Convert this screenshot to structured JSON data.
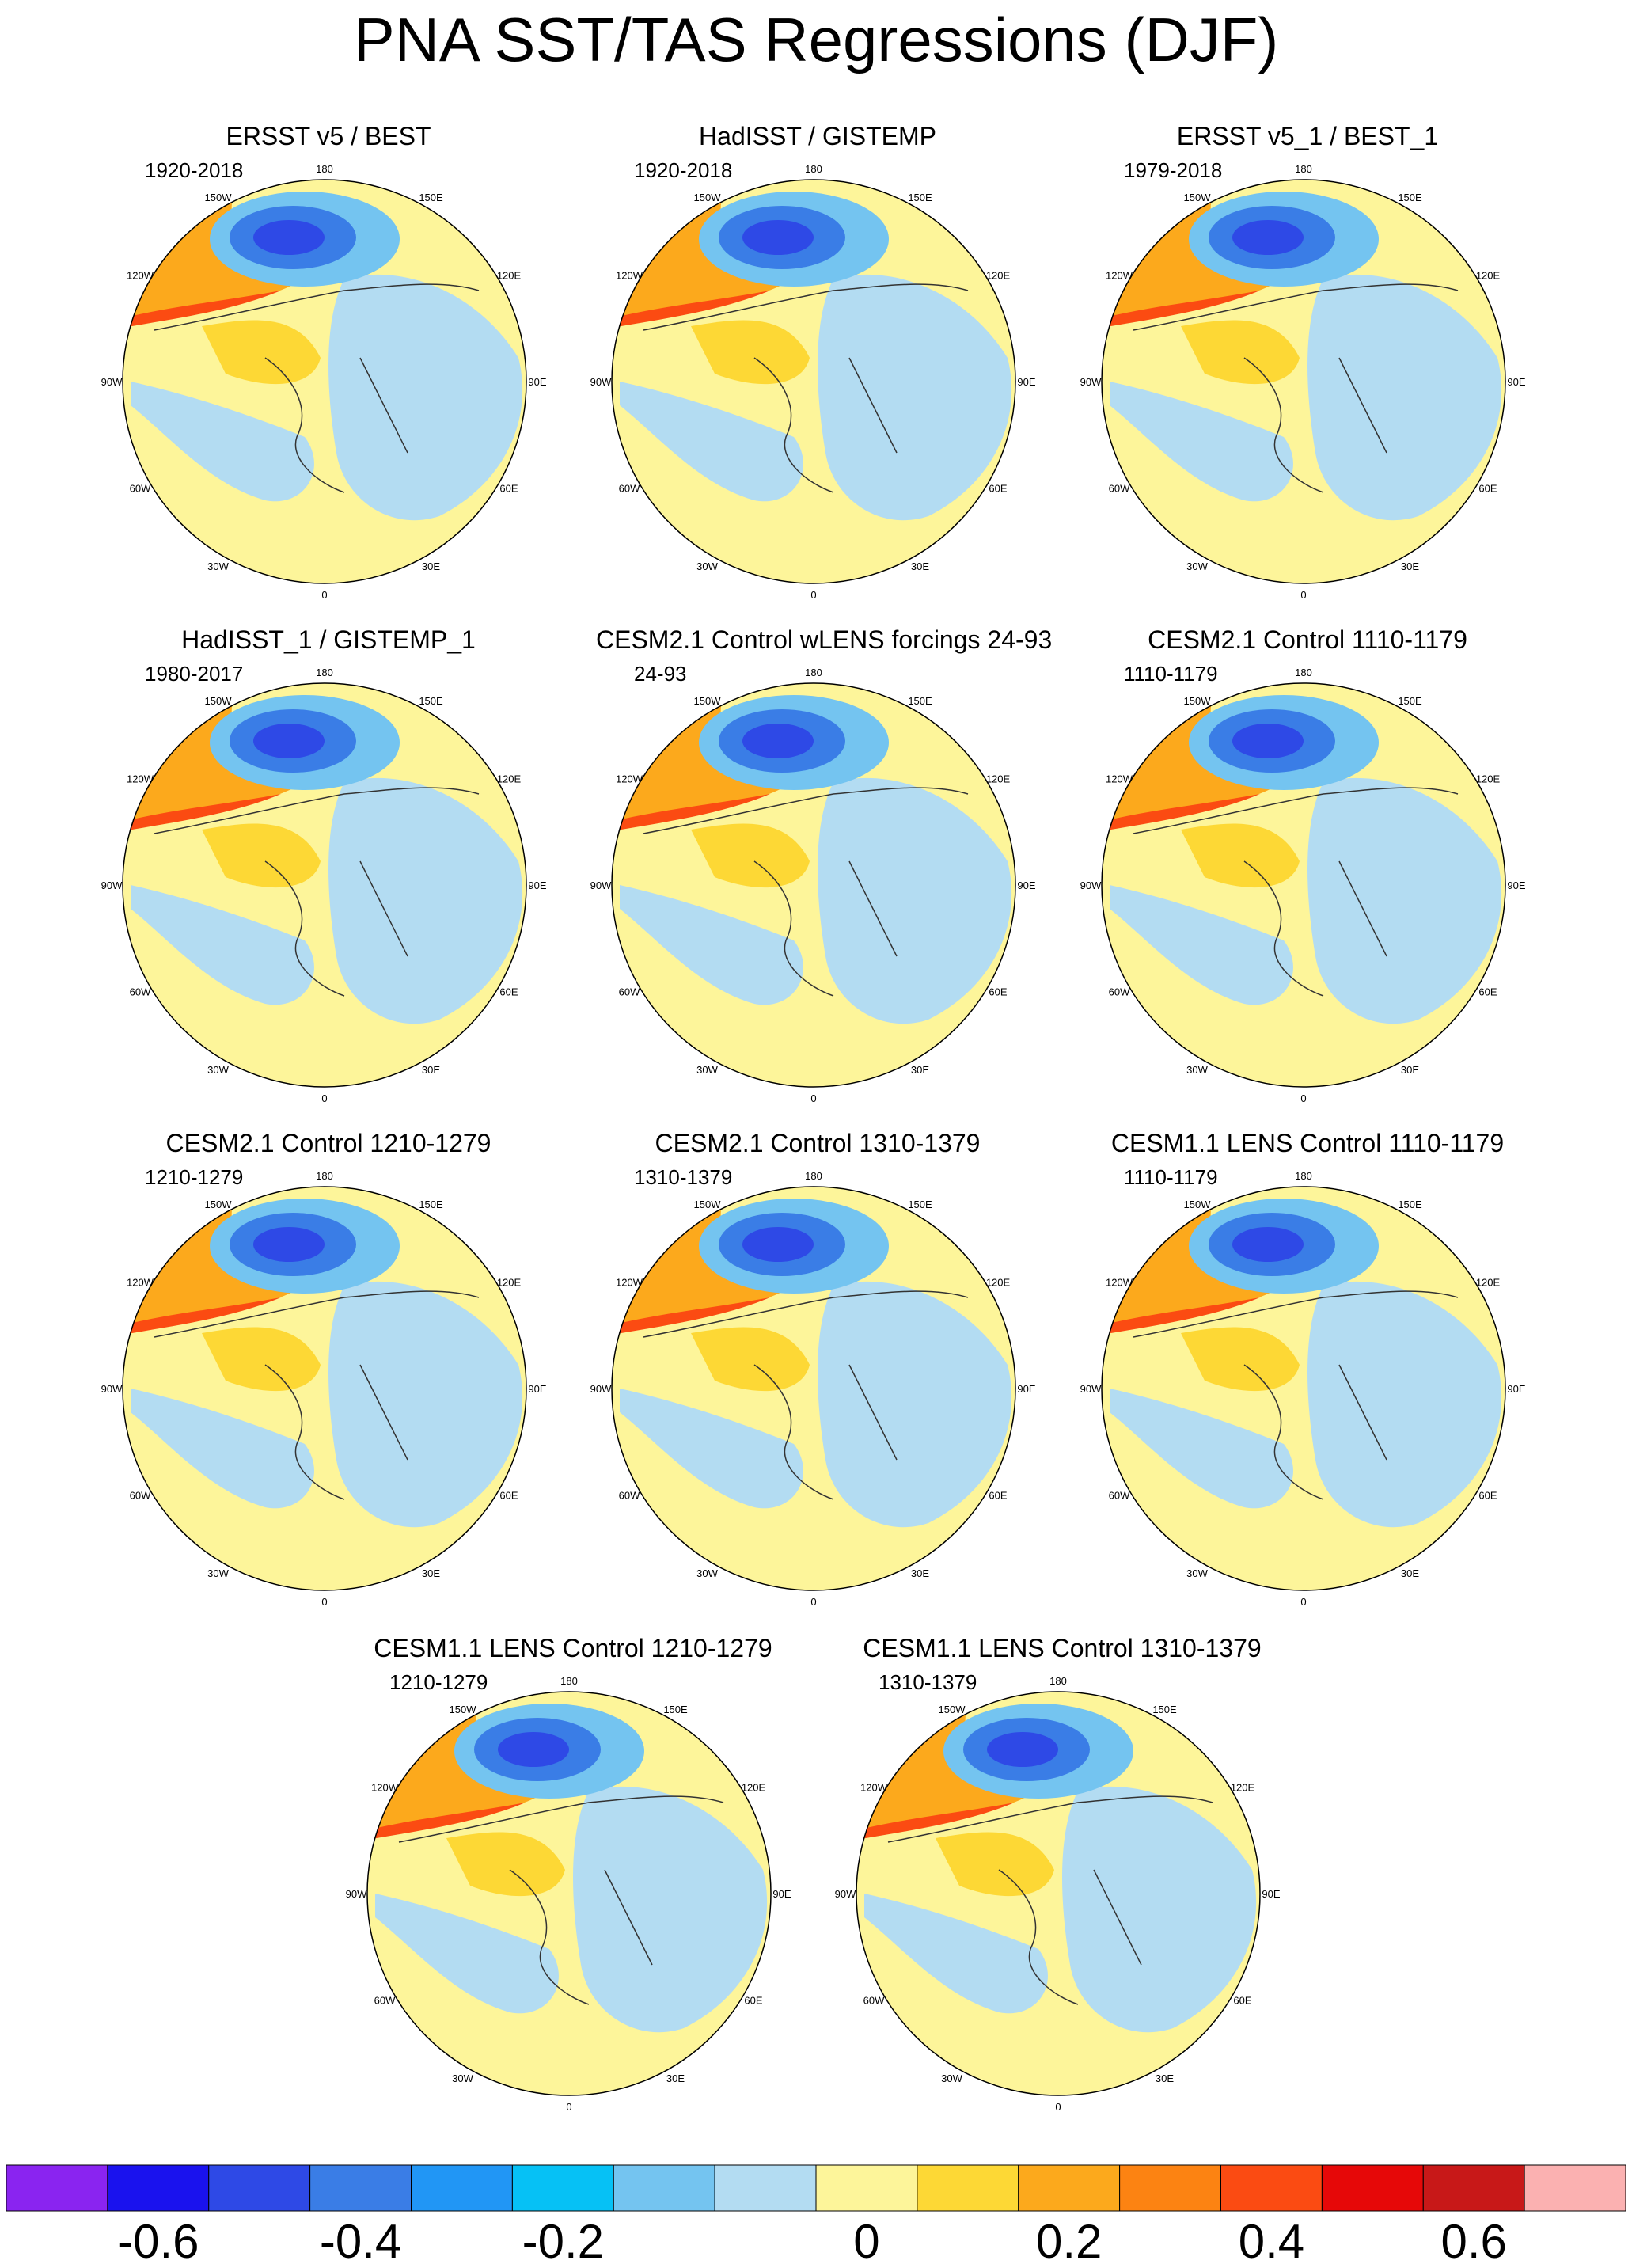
{
  "title": "PNA SST/TAS Regressions (DJF)",
  "colors": {
    "palette": [
      "#8a24f0",
      "#1a12ee",
      "#2e49e6",
      "#3a7de6",
      "#2196f5",
      "#06c1f5",
      "#74c4f0",
      "#b3dcf2",
      "#fdf59a",
      "#fdd835",
      "#fca91c",
      "#fc8312",
      "#fb4b12",
      "#e60808",
      "#c81818",
      "#fbb1b1"
    ],
    "ocean_low_accent": "#2e49e6",
    "coast": "#333333"
  },
  "lon_labels": {
    "lon_180": "180",
    "lon_150e": "150E",
    "lon_120e": "120E",
    "lon_90e": "90E",
    "lon_60e": "60E",
    "lon_30e": "30E",
    "lon_0": "0",
    "lon_30w": "30W",
    "lon_60w": "60W",
    "lon_90w": "90W",
    "lon_120w": "120W",
    "lon_150w": "150W"
  },
  "panels": [
    {
      "title": "ERSST v5 / BEST",
      "years": "1920-2018"
    },
    {
      "title": "HadISST / GISTEMP",
      "years": "1920-2018"
    },
    {
      "title": "ERSST v5_1 / BEST_1",
      "years": "1979-2018"
    },
    {
      "title": "HadISST_1 / GISTEMP_1",
      "years": "1980-2017"
    },
    {
      "title": "CESM2.1 Control wLENS forcings 24-93",
      "years": "24-93"
    },
    {
      "title": "CESM2.1 Control 1110-1179",
      "years": "1110-1179"
    },
    {
      "title": "CESM2.1 Control 1210-1279",
      "years": "1210-1279"
    },
    {
      "title": "CESM2.1 Control 1310-1379",
      "years": "1310-1379"
    },
    {
      "title": "CESM1.1 LENS Control 1110-1179",
      "years": "1110-1179"
    },
    {
      "title": "CESM1.1 LENS Control 1210-1279",
      "years": "1210-1279"
    },
    {
      "title": "CESM1.1 LENS Control 1310-1379",
      "years": "1310-1379"
    }
  ],
  "colorbar": {
    "levels": [
      "-0.6",
      "-0.4",
      "-0.2",
      "0",
      "0.2",
      "0.4",
      "0.6"
    ]
  }
}
